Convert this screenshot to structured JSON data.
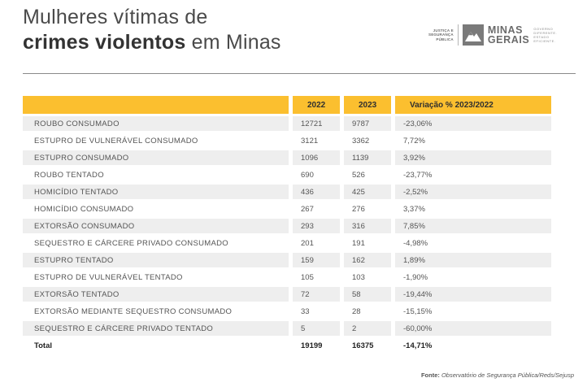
{
  "title": {
    "line1": "Mulheres vítimas de",
    "line2_bold": "crimes violentos",
    "line2_rest": " em Minas"
  },
  "logo": {
    "seal_line1": "JUSTIÇA E",
    "seal_line2": "SEGURANÇA",
    "seal_line3": "PÚBLICA",
    "brand_line1": "MINAS",
    "brand_line2": "GERAIS",
    "gov_line1": "GOVERNO",
    "gov_line2": "DIFERENTE.",
    "gov_line3": "ESTADO",
    "gov_line4": "EFICIENTE."
  },
  "colors": {
    "header": "#fbbf2f",
    "band": "#eeeeee"
  },
  "chart_data": {
    "type": "table",
    "columns": [
      "",
      "2022",
      "2023",
      "Variação % 2023/2022"
    ],
    "rows": [
      [
        "ROUBO CONSUMADO",
        "12721",
        "9787",
        "-23,06%"
      ],
      [
        "ESTUPRO DE VULNERÁVEL CONSUMADO",
        "3121",
        "3362",
        "7,72%"
      ],
      [
        "ESTUPRO CONSUMADO",
        "1096",
        "1139",
        "3,92%"
      ],
      [
        "ROUBO TENTADO",
        "690",
        "526",
        "-23,77%"
      ],
      [
        "HOMICÍDIO TENTADO",
        "436",
        "425",
        "-2,52%"
      ],
      [
        "HOMICÍDIO CONSUMADO",
        "267",
        "276",
        "3,37%"
      ],
      [
        "EXTORSÃO CONSUMADO",
        "293",
        "316",
        "7,85%"
      ],
      [
        "SEQUESTRO E CÁRCERE PRIVADO CONSUMADO",
        "201",
        "191",
        "-4,98%"
      ],
      [
        "ESTUPRO TENTADO",
        "159",
        "162",
        "1,89%"
      ],
      [
        "ESTUPRO DE VULNERÁVEL TENTADO",
        "105",
        "103",
        "-1,90%"
      ],
      [
        "EXTORSÃO TENTADO",
        "72",
        "58",
        "-19,44%"
      ],
      [
        "EXTORSÃO MEDIANTE SEQUESTRO CONSUMADO",
        "33",
        "28",
        "-15,15%"
      ],
      [
        "SEQUESTRO E CÁRCERE PRIVADO TENTADO",
        "5",
        "2",
        "-60,00%"
      ]
    ],
    "total": [
      "Total",
      "19199",
      "16375",
      "-14,71%"
    ]
  },
  "source": {
    "label": "Fonte:",
    "text": " Observatório de Segurança Pública/Reds/Sejusp"
  }
}
